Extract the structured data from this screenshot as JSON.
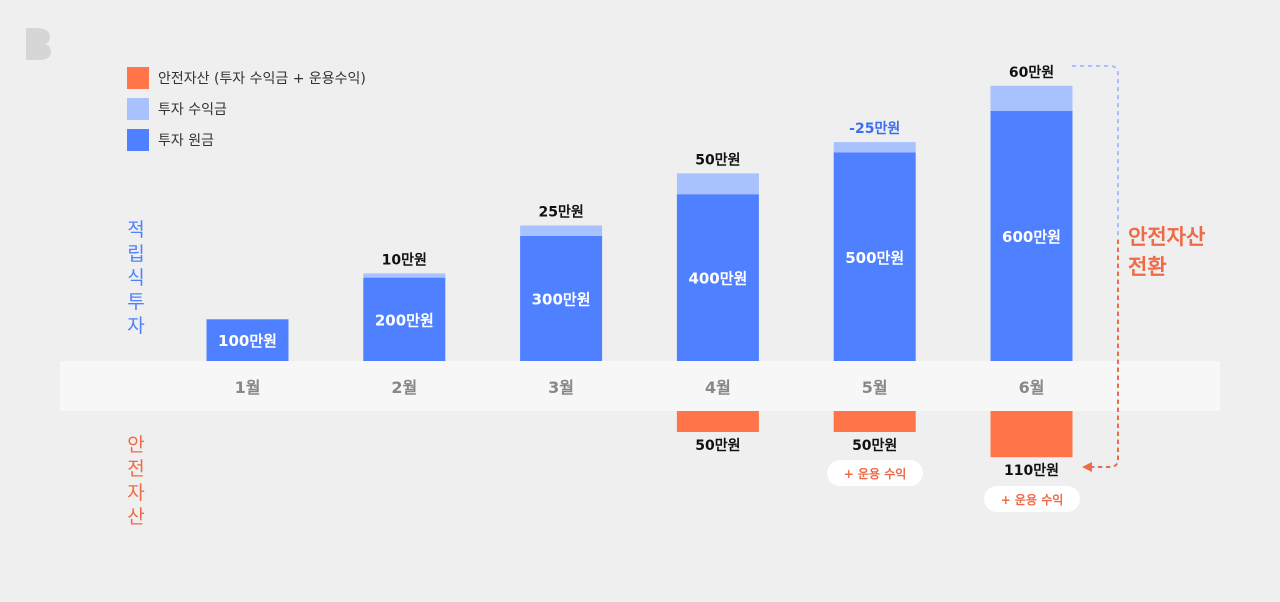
{
  "legend": [
    {
      "label": "안전자산 (투자 수익금 + 운용수익)",
      "color": "#ff7449"
    },
    {
      "label": "투자 수익금",
      "color": "#a8c1ff"
    },
    {
      "label": "투자 원금",
      "color": "#4f80ff"
    }
  ],
  "side_labels": {
    "top": "적립식투자",
    "bottom": "안전자산"
  },
  "callout": "안전자산 전환",
  "pill_label": "+ 운용 수익",
  "colors": {
    "principal": "#4f80ff",
    "profit": "#a8c1ff",
    "safe": "#ff7449",
    "axis_band": "#f7f7f7",
    "accent_text": "#ef6a47",
    "negative_text": "#3a6df0"
  },
  "chart_data": {
    "type": "bar",
    "categories": [
      "1월",
      "2월",
      "3월",
      "4월",
      "5월",
      "6월"
    ],
    "series": [
      {
        "name": "투자 원금",
        "values": [
          100,
          200,
          300,
          400,
          500,
          600
        ],
        "labels": [
          "100만원",
          "200만원",
          "300만원",
          "400만원",
          "500만원",
          "600만원"
        ]
      },
      {
        "name": "투자 수익금",
        "values": [
          0,
          10,
          25,
          50,
          -25,
          60
        ],
        "labels": [
          "",
          "10만원",
          "25만원",
          "50만원",
          "-25만원",
          "60만원"
        ]
      },
      {
        "name": "안전자산 (투자 수익금 + 운용수익)",
        "values": [
          0,
          0,
          0,
          50,
          50,
          110
        ],
        "labels": [
          "",
          "",
          "",
          "50만원",
          "50만원",
          "110만원"
        ]
      }
    ],
    "ylabel": "",
    "xlabel": "",
    "unit": "만원",
    "annotations": [
      "+ 운용 수익",
      "+ 운용 수익"
    ]
  }
}
